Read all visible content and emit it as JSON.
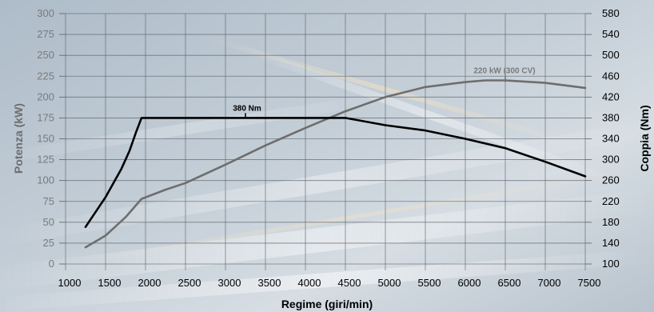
{
  "chart_data": {
    "type": "line",
    "xlabel": "Regime (giri/min)",
    "ylabel_left": "Potenza (kW)",
    "ylabel_right": "Coppia (Nm)",
    "xlim": [
      1000,
      7500
    ],
    "ylim_left": [
      0,
      300
    ],
    "ylim_right": [
      100,
      580
    ],
    "x_ticks": [
      1000,
      1500,
      2000,
      2500,
      3000,
      3500,
      4000,
      4500,
      5000,
      5500,
      6000,
      6500,
      7000,
      7500
    ],
    "y_left_ticks": [
      0,
      25,
      50,
      75,
      100,
      125,
      150,
      175,
      200,
      225,
      250,
      275,
      300
    ],
    "y_right_ticks": [
      100,
      140,
      180,
      220,
      260,
      300,
      340,
      380,
      420,
      460,
      500,
      540,
      580
    ],
    "grid": true,
    "series": [
      {
        "axis": "left",
        "color": "#6e6e6e",
        "points": [
          [
            1250,
            20
          ],
          [
            1500,
            34
          ],
          [
            1750,
            56
          ],
          [
            1950,
            78
          ],
          [
            2250,
            89
          ],
          [
            2500,
            97
          ],
          [
            3000,
            119
          ],
          [
            3500,
            142
          ],
          [
            4000,
            163
          ],
          [
            4500,
            183
          ],
          [
            5000,
            200
          ],
          [
            5500,
            212
          ],
          [
            6000,
            218
          ],
          [
            6250,
            220
          ],
          [
            6500,
            220
          ],
          [
            7000,
            217
          ],
          [
            7500,
            211
          ]
        ]
      },
      {
        "axis": "right",
        "color": "#000000",
        "points": [
          [
            1250,
            171
          ],
          [
            1500,
            228
          ],
          [
            1700,
            283
          ],
          [
            1800,
            317
          ],
          [
            1880,
            352
          ],
          [
            1950,
            380
          ],
          [
            2500,
            380
          ],
          [
            3000,
            380
          ],
          [
            3500,
            380
          ],
          [
            4000,
            380
          ],
          [
            4500,
            380
          ],
          [
            5000,
            366
          ],
          [
            5500,
            356
          ],
          [
            6000,
            340
          ],
          [
            6500,
            322
          ],
          [
            7000,
            296
          ],
          [
            7500,
            268
          ]
        ]
      }
    ],
    "annotations": [
      {
        "text": "380 Nm",
        "x": 3250,
        "y": 380,
        "axis": "right"
      },
      {
        "text": "220 kW (300 CV)",
        "x": 6500,
        "y": 220,
        "axis": "left"
      }
    ]
  }
}
